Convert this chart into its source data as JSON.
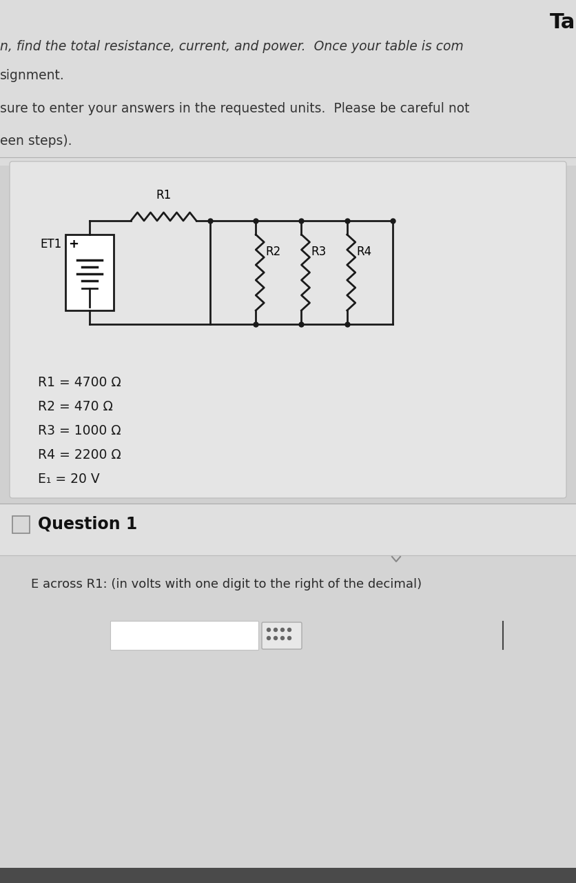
{
  "title_text": "Ta",
  "line1": "n, find the total resistance, current, and power.  Once your table is com",
  "line2": "signment.",
  "line3": "sure to enter your answers in the requested units.  Please be careful not",
  "line4": "een steps).",
  "r1_label": "R1",
  "r2_label": "R2",
  "r3_label": "R3",
  "r4_label": "R4",
  "et1_label": "ET1",
  "values_text": [
    "R1 = 4700 Ω",
    "R2 = 470 Ω",
    "R3 = 1000 Ω",
    "R4 = 2200 Ω",
    "E₁ = 20 V"
  ],
  "question_header": "Question 1",
  "question_text": "E across R1: (in volts with one digit to the right of the decimal)",
  "bg_top": "#e0e0e0",
  "bg_main": "#d5d5d5",
  "circuit_box_bg": "#e8e8e8",
  "question_box_bg": "#d8d8d8",
  "wire_color": "#1a1a1a",
  "text_color": "#2a2a2a"
}
